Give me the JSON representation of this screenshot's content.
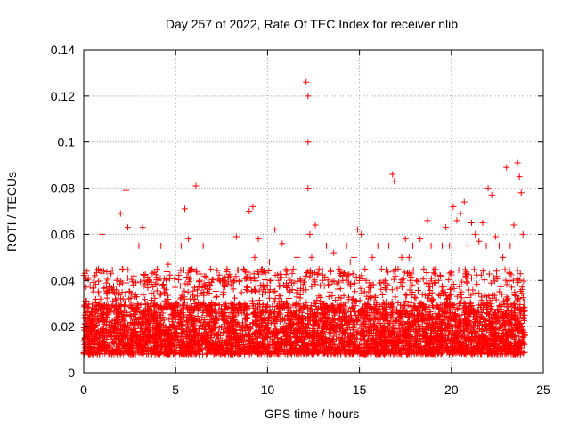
{
  "chart_data": {
    "type": "scatter",
    "title": "Day 257 of 2022, Rate Of TEC Index for receiver nlib",
    "xlabel": "GPS time / hours",
    "ylabel": "ROTI / TECUs",
    "xlim": [
      0,
      25
    ],
    "ylim": [
      0,
      0.14
    ],
    "xticks": [
      0,
      5,
      10,
      15,
      20,
      25
    ],
    "xtick_labels": [
      "0",
      "5",
      "10",
      "15",
      "20",
      "25"
    ],
    "yticks": [
      0,
      0.02,
      0.04,
      0.06,
      0.08,
      0.1,
      0.12,
      0.14
    ],
    "ytick_labels": [
      "0",
      "0.02",
      "0.04",
      "0.06",
      "0.08",
      "0.1",
      "0.12",
      "0.14"
    ],
    "grid": true,
    "marker": "+",
    "color": "#ff0000",
    "x_range_of_data": [
      0,
      24
    ],
    "typical_band": [
      0.008,
      0.03
    ],
    "series": [
      {
        "x": [
          0.1,
          0.3,
          0.5,
          0.8,
          1.0,
          1.1,
          1.4,
          1.6,
          1.8,
          2.0,
          2.1,
          2.3,
          2.4,
          2.5,
          2.6,
          2.8,
          3.0,
          3.2,
          3.3,
          3.5,
          3.8,
          4.0,
          4.2,
          4.4,
          4.6,
          4.8,
          5.0,
          5.3,
          5.5,
          5.7,
          5.9,
          6.1,
          6.3,
          6.5,
          6.7,
          6.9,
          7.2,
          7.4,
          7.6,
          7.8,
          8.0,
          8.3,
          8.5,
          8.7,
          9.0,
          9.2,
          9.3,
          9.5,
          9.7,
          9.9,
          10.1,
          10.4,
          10.6,
          10.8,
          11.0,
          11.2,
          11.4,
          11.6,
          11.8,
          12.1,
          12.2,
          12.2,
          12.2,
          12.3,
          12.4,
          12.6,
          12.8,
          13.0,
          13.2,
          13.4,
          13.6,
          13.9,
          14.1,
          14.3,
          14.5,
          14.7,
          14.9,
          15.1,
          15.3,
          15.5,
          15.7,
          16.0,
          16.2,
          16.4,
          16.6,
          16.8,
          16.9,
          17.1,
          17.3,
          17.5,
          17.7,
          17.9,
          18.1,
          18.3,
          18.5,
          18.7,
          18.9,
          19.1,
          19.3,
          19.5,
          19.7,
          19.9,
          20.1,
          20.3,
          20.5,
          20.7,
          20.9,
          21.1,
          21.3,
          21.5,
          21.7,
          21.9,
          22.0,
          22.2,
          22.4,
          22.6,
          22.8,
          23.0,
          23.2,
          23.4,
          23.6,
          23.7,
          23.8,
          23.9
        ],
        "y": [
          0.031,
          0.018,
          0.022,
          0.045,
          0.06,
          0.028,
          0.022,
          0.035,
          0.04,
          0.069,
          0.045,
          0.079,
          0.063,
          0.035,
          0.028,
          0.033,
          0.055,
          0.063,
          0.04,
          0.025,
          0.03,
          0.045,
          0.055,
          0.035,
          0.047,
          0.028,
          0.03,
          0.055,
          0.071,
          0.058,
          0.045,
          0.081,
          0.04,
          0.055,
          0.035,
          0.045,
          0.03,
          0.04,
          0.035,
          0.045,
          0.03,
          0.059,
          0.04,
          0.045,
          0.07,
          0.072,
          0.05,
          0.058,
          0.045,
          0.035,
          0.048,
          0.062,
          0.04,
          0.056,
          0.03,
          0.035,
          0.045,
          0.05,
          0.04,
          0.126,
          0.12,
          0.1,
          0.08,
          0.06,
          0.05,
          0.064,
          0.045,
          0.04,
          0.055,
          0.035,
          0.052,
          0.045,
          0.04,
          0.055,
          0.048,
          0.05,
          0.062,
          0.06,
          0.045,
          0.035,
          0.05,
          0.055,
          0.045,
          0.04,
          0.055,
          0.086,
          0.083,
          0.045,
          0.05,
          0.058,
          0.05,
          0.055,
          0.04,
          0.058,
          0.045,
          0.066,
          0.055,
          0.045,
          0.04,
          0.055,
          0.063,
          0.055,
          0.072,
          0.066,
          0.069,
          0.074,
          0.055,
          0.065,
          0.06,
          0.057,
          0.065,
          0.055,
          0.08,
          0.077,
          0.059,
          0.055,
          0.05,
          0.089,
          0.055,
          0.064,
          0.091,
          0.085,
          0.078,
          0.06
        ]
      }
    ]
  }
}
